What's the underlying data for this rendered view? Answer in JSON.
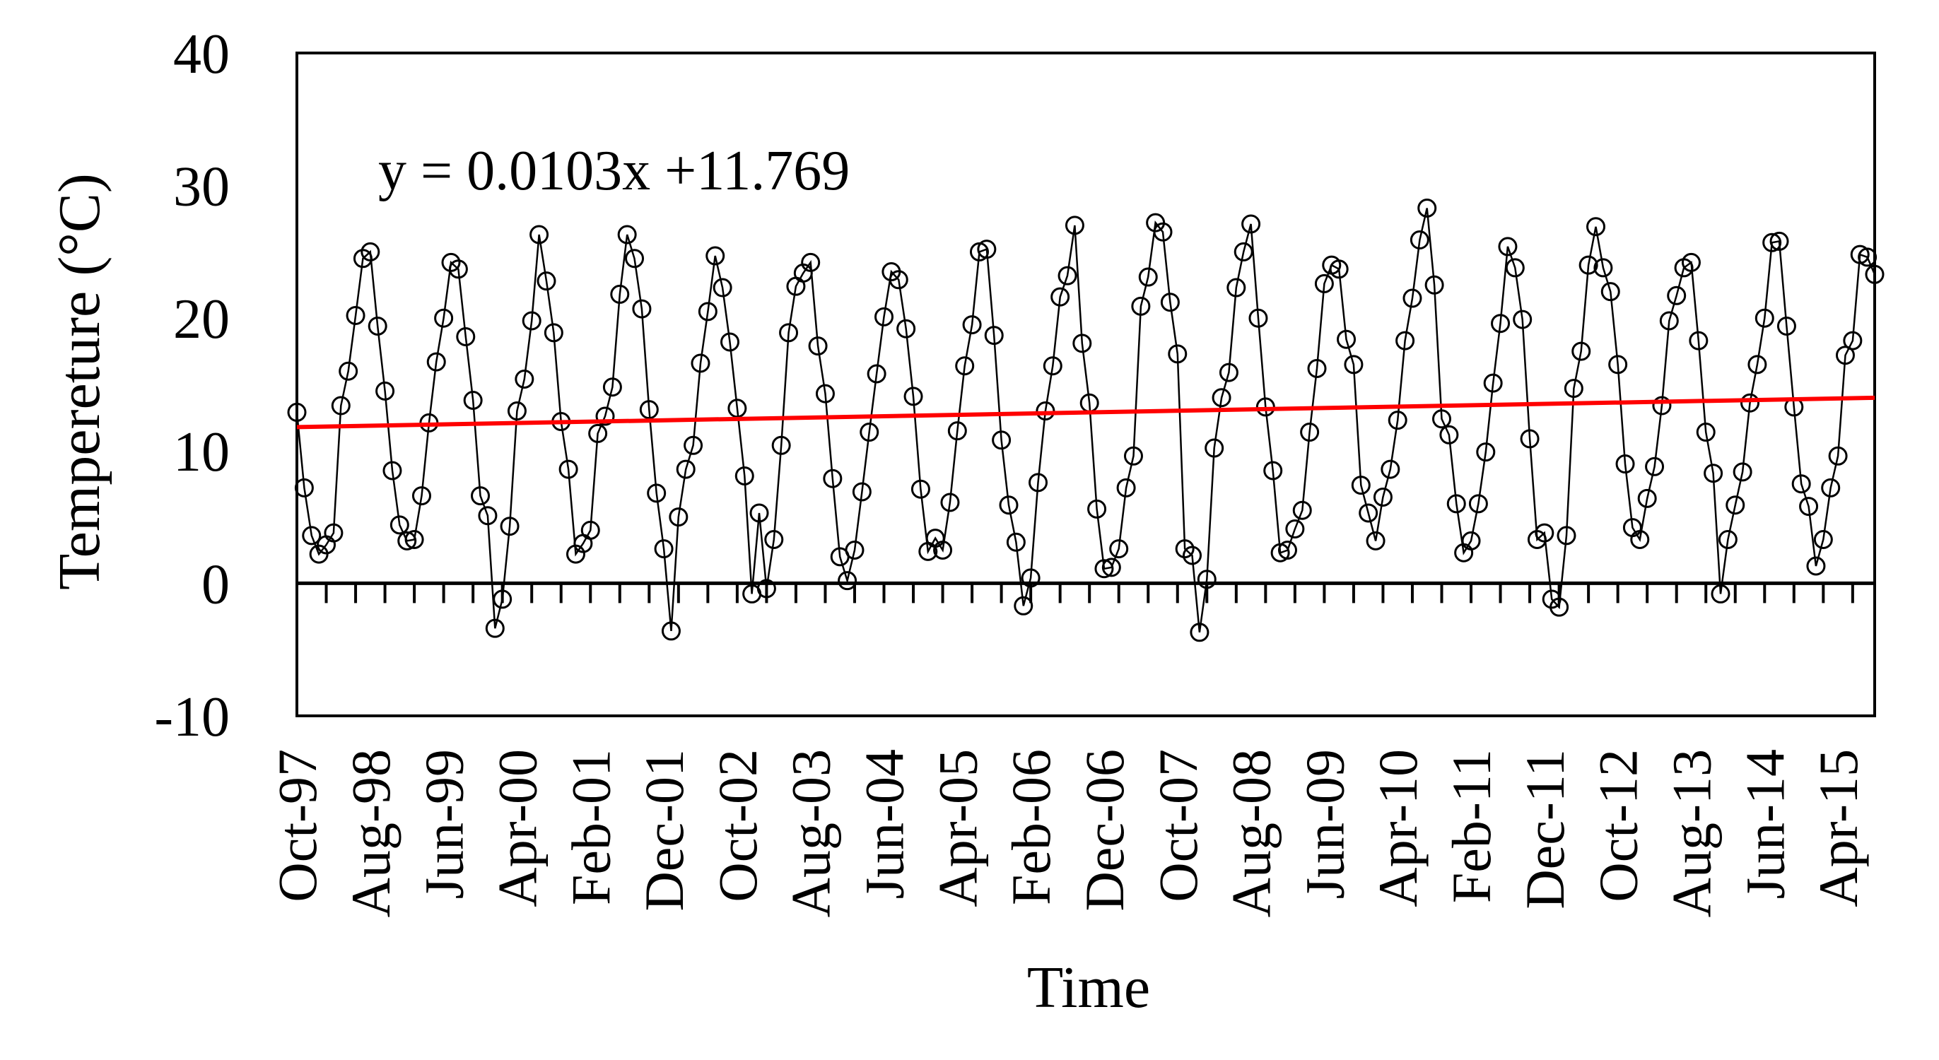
{
  "chart_data": {
    "type": "line",
    "xlabel": "Time",
    "ylabel": "Tempereture (°C)",
    "ylim": [
      -10,
      40
    ],
    "yticks": [
      -10,
      0,
      10,
      20,
      30,
      40
    ],
    "x_tick_labels": [
      "Oct-97",
      "Aug-98",
      "Jun-99",
      "Apr-00",
      "Feb-01",
      "Dec-01",
      "Oct-02",
      "Aug-03",
      "Jun-04",
      "Apr-05",
      "Feb-06",
      "Dec-06",
      "Oct-07",
      "Aug-08",
      "Jun-09",
      "Apr-10",
      "Feb-11",
      "Dec-11",
      "Oct-12",
      "Aug-13",
      "Jun-14",
      "Apr-15"
    ],
    "x_start": "Oct-97",
    "x_end": "Dec-15",
    "grid": false,
    "legend": "none",
    "annotation": "y = 0.0103x +11.769",
    "series": [
      {
        "marker": "open-circle",
        "color": "#000000",
        "values": [
          12.9,
          7.2,
          3.6,
          2.2,
          2.9,
          3.8,
          13.4,
          16.0,
          20.2,
          24.5,
          25.0,
          19.4,
          14.5,
          8.5,
          4.4,
          3.2,
          3.3,
          6.6,
          12.1,
          16.7,
          20.0,
          24.2,
          23.7,
          18.6,
          13.8,
          6.6,
          5.1,
          -3.4,
          -1.2,
          4.3,
          13.0,
          15.4,
          19.8,
          26.3,
          22.8,
          18.9,
          12.2,
          8.6,
          2.2,
          3.0,
          4.0,
          11.3,
          12.6,
          14.8,
          21.8,
          26.3,
          24.5,
          20.7,
          13.1,
          6.8,
          2.6,
          -3.6,
          5.0,
          8.6,
          10.4,
          16.6,
          20.5,
          24.7,
          22.3,
          18.2,
          13.2,
          8.1,
          -0.8,
          5.3,
          -0.4,
          3.3,
          10.4,
          18.9,
          22.4,
          23.4,
          24.2,
          17.9,
          14.3,
          7.9,
          2.0,
          0.2,
          2.5,
          6.9,
          11.4,
          15.8,
          20.1,
          23.5,
          22.9,
          19.2,
          14.1,
          7.1,
          2.4,
          3.4,
          2.5,
          6.1,
          11.5,
          16.4,
          19.5,
          25.0,
          25.2,
          18.7,
          10.8,
          5.9,
          3.1,
          -1.7,
          0.4,
          7.6,
          13.0,
          16.4,
          21.6,
          23.2,
          27.0,
          18.1,
          13.6,
          5.6,
          1.1,
          1.2,
          2.6,
          7.2,
          9.6,
          20.9,
          23.1,
          27.2,
          26.5,
          21.2,
          17.3,
          2.6,
          2.1,
          -3.7,
          0.3,
          10.2,
          14.0,
          15.9,
          22.3,
          25.0,
          27.1,
          20.0,
          13.3,
          8.5,
          2.3,
          2.5,
          4.1,
          5.5,
          11.4,
          16.2,
          22.6,
          24.0,
          23.7,
          18.4,
          16.5,
          7.4,
          5.3,
          3.2,
          6.5,
          8.6,
          12.3,
          18.3,
          21.5,
          25.9,
          28.3,
          22.5,
          12.4,
          11.2,
          6.0,
          2.3,
          3.2,
          6.0,
          9.9,
          15.1,
          19.6,
          25.4,
          23.8,
          19.9,
          10.9,
          3.3,
          3.8,
          -1.2,
          -1.8,
          3.6,
          14.7,
          17.5,
          24.0,
          26.9,
          23.8,
          22.0,
          16.5,
          9.0,
          4.2,
          3.3,
          6.4,
          8.8,
          13.4,
          19.8,
          21.7,
          23.8,
          24.2,
          18.3,
          11.4,
          8.3,
          -0.8,
          3.3,
          5.9,
          8.4,
          13.6,
          16.5,
          20.0,
          25.7,
          25.8,
          19.4,
          13.3,
          7.5,
          5.8,
          1.3,
          3.3,
          7.2,
          9.6,
          17.2,
          18.3,
          24.8,
          24.6,
          23.3
        ]
      },
      {
        "name": "trend",
        "color": "#ff0000",
        "intercept": 11.769,
        "slope_per_month": 0.0103
      }
    ]
  }
}
